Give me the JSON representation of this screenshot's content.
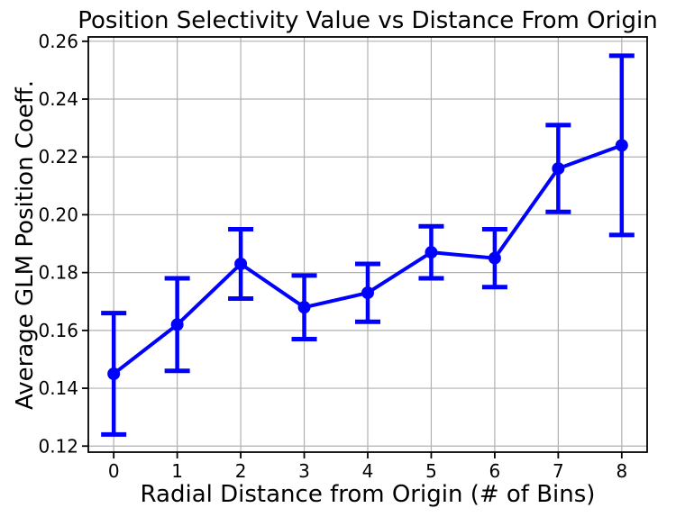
{
  "figure": {
    "background": "#ffffff"
  },
  "chart_data": {
    "type": "line",
    "title": "Position Selectivity Value vs Distance From Origin",
    "xlabel": "Radial Distance from Origin (# of Bins)",
    "ylabel": "Average GLM Position Coeff.",
    "x": [
      0,
      1,
      2,
      3,
      4,
      5,
      6,
      7,
      8
    ],
    "series": [
      {
        "name": "Average GLM Position Coeff.",
        "values": [
          0.145,
          0.162,
          0.183,
          0.168,
          0.173,
          0.187,
          0.185,
          0.216,
          0.224
        ],
        "yerr": [
          0.021,
          0.016,
          0.012,
          0.011,
          0.01,
          0.009,
          0.01,
          0.015,
          0.031
        ],
        "color": "#0000ff",
        "marker": "circle"
      }
    ],
    "xticks": [
      0,
      1,
      2,
      3,
      4,
      5,
      6,
      7,
      8
    ],
    "xtick_labels": [
      "0",
      "1",
      "2",
      "3",
      "4",
      "5",
      "6",
      "7",
      "8"
    ],
    "yticks": [
      0.12,
      0.14,
      0.16,
      0.18,
      0.2,
      0.22,
      0.24,
      0.26
    ],
    "ytick_labels": [
      "0.12",
      "0.14",
      "0.16",
      "0.18",
      "0.20",
      "0.22",
      "0.24",
      "0.26"
    ],
    "xlim": [
      -0.4,
      8.4
    ],
    "ylim": [
      0.1179,
      0.2615
    ],
    "grid": true,
    "grid_color": "#b0b0b0",
    "spine_color": "#000000",
    "legend_position": "none"
  }
}
